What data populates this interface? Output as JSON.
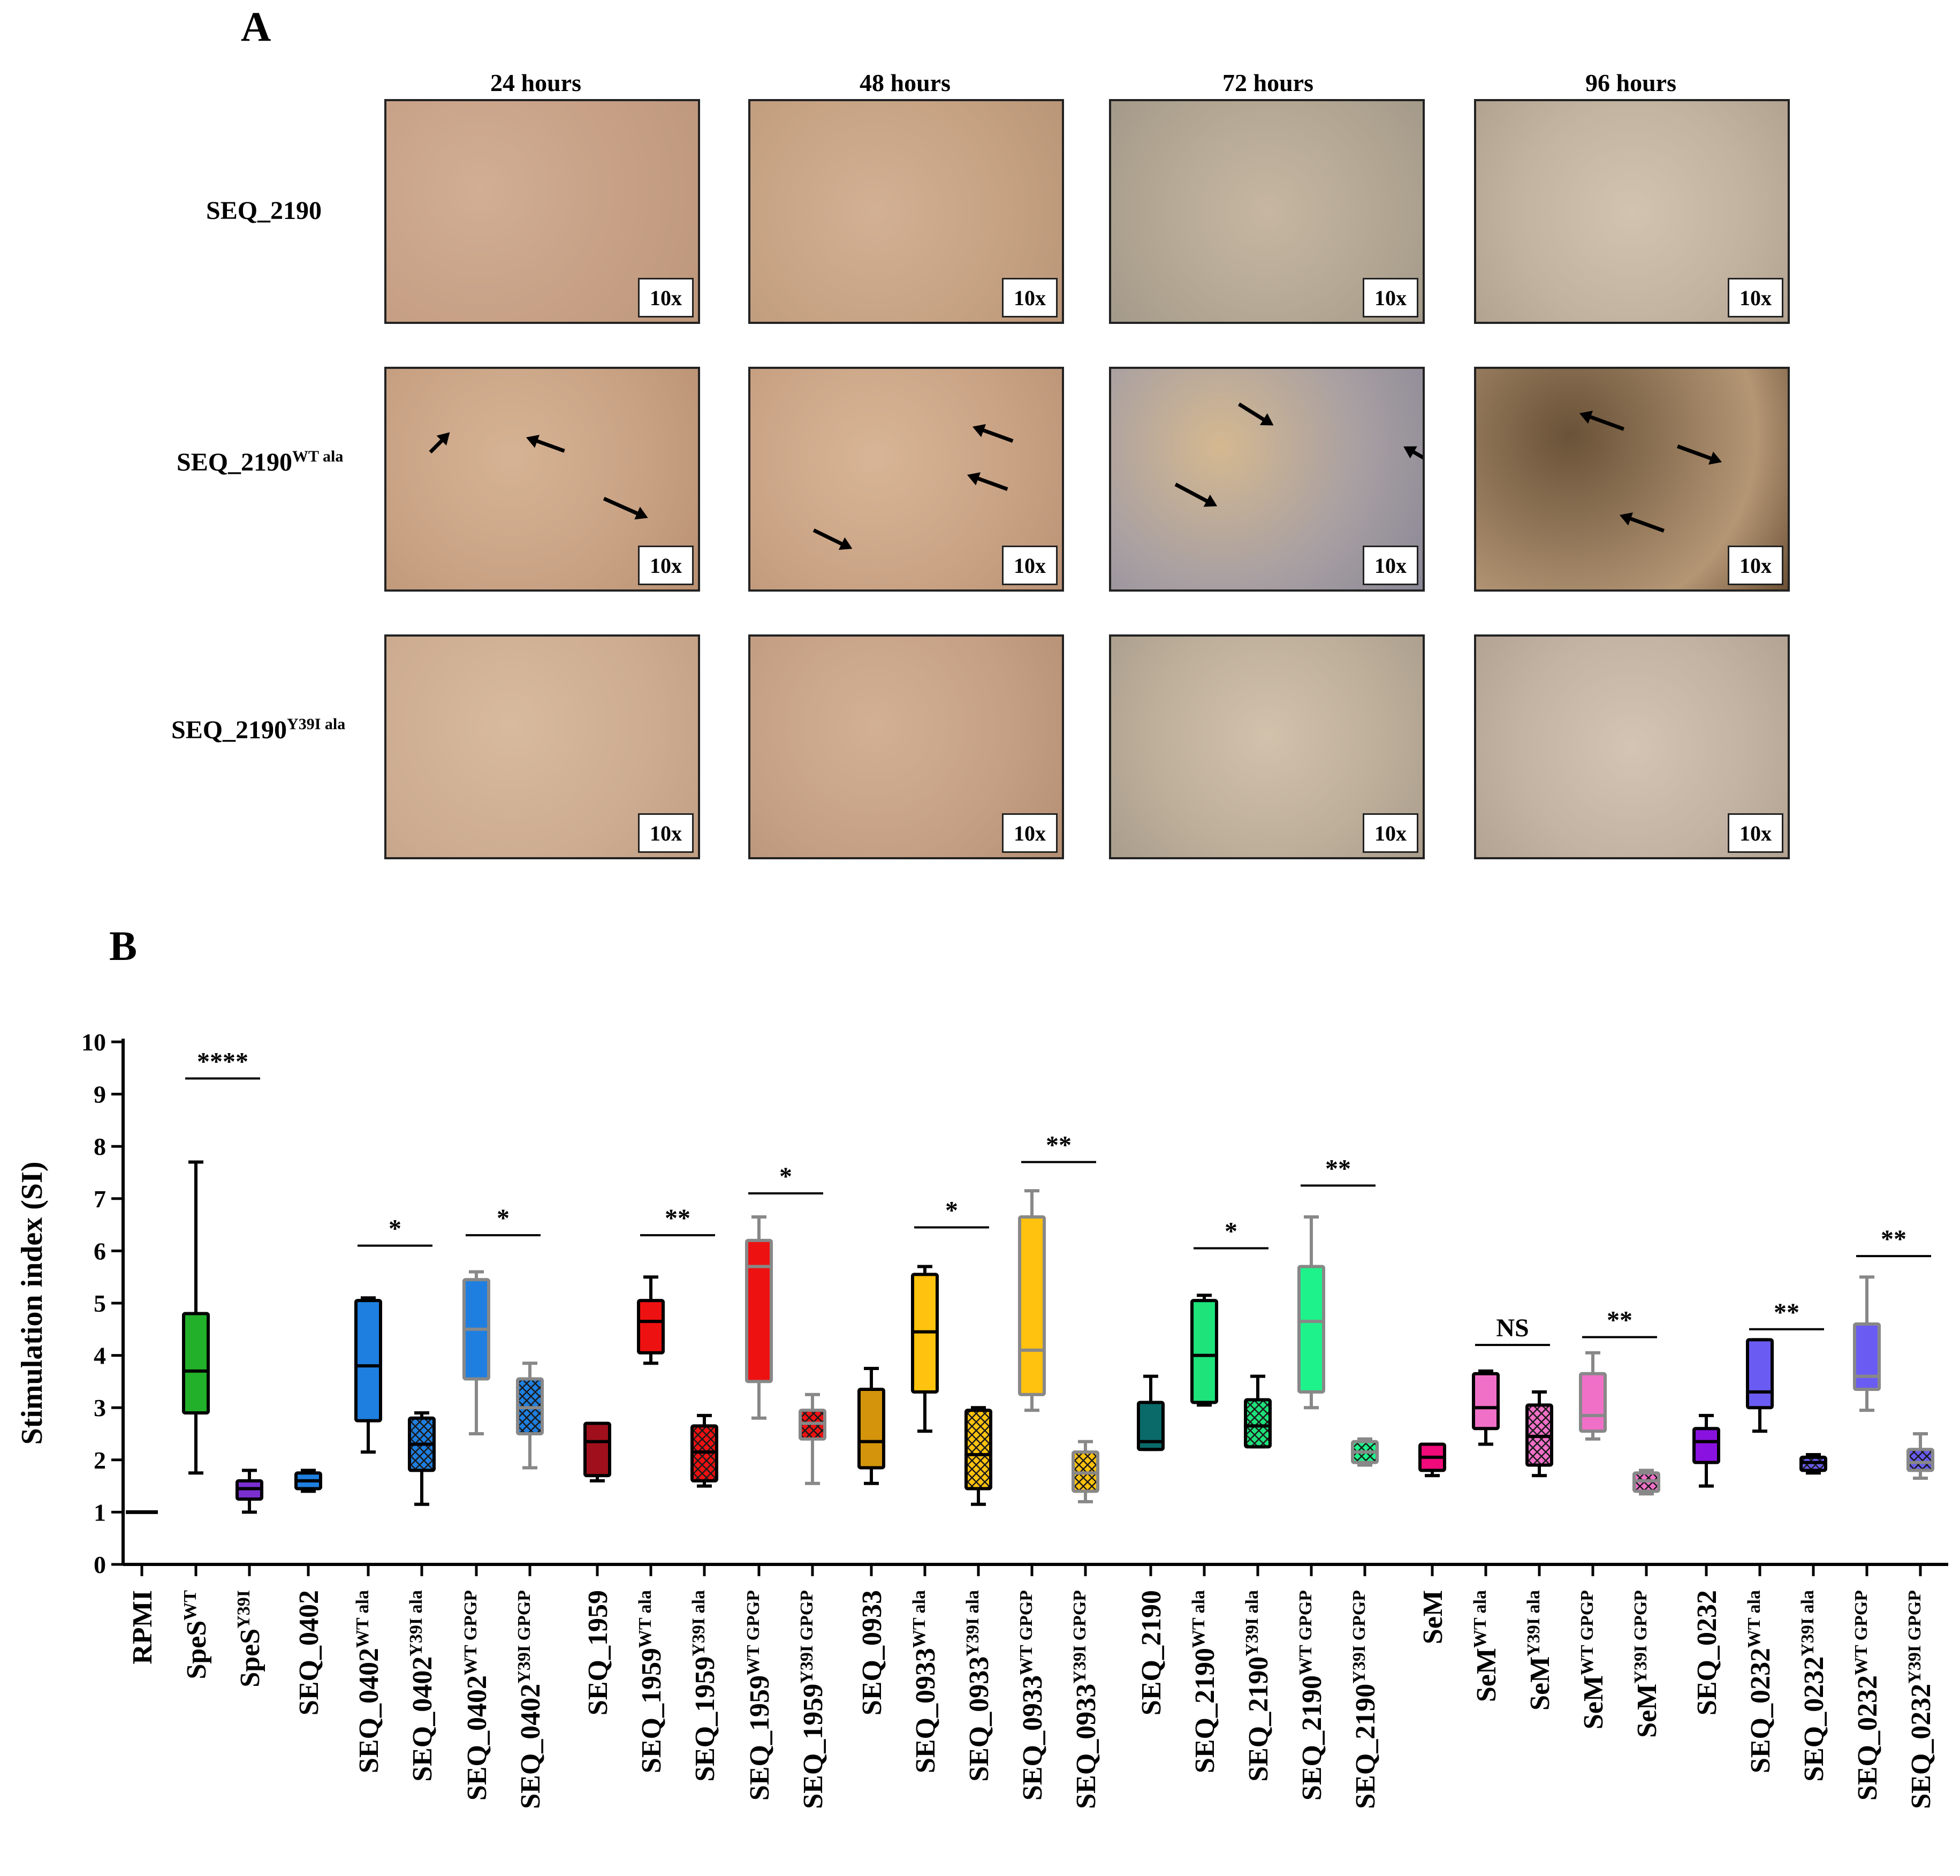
{
  "panel_a": {
    "label": "A",
    "columns": [
      "24 hours",
      "48 hours",
      "72 hours",
      "96 hours"
    ],
    "rows": [
      {
        "name": "SEQ_2190",
        "sup": ""
      },
      {
        "name": "SEQ_2190",
        "sup": "WT ala"
      },
      {
        "name": "SEQ_2190",
        "sup": "Y39I ala"
      }
    ],
    "magnification": "10x",
    "colors": {
      "r1": "#c9a58a",
      "r2": "#c8a07d",
      "r3": "#c7a78d",
      "r4": "#b9ab9c",
      "r5": "#bfae9f"
    }
  },
  "chart_data": {
    "type": "box",
    "panel_label": "B",
    "ylabel": "Stimulation index (SI)",
    "ylim": [
      0,
      10
    ],
    "yticks": [
      0,
      1,
      2,
      3,
      4,
      5,
      6,
      7,
      8,
      9,
      10
    ],
    "reference_line": {
      "label": "RPMI",
      "value": 1
    },
    "groups": [
      {
        "label": "RPMI",
        "sup": "",
        "color": "",
        "pattern": "",
        "stroke": ""
      },
      {
        "label": "SpeS",
        "sup": "WT",
        "color": "#22b02a",
        "pattern": "solid",
        "stroke": "#000",
        "min": 1.75,
        "q1": 2.9,
        "median": 3.7,
        "q3": 4.8,
        "max": 7.7
      },
      {
        "label": "SpeS",
        "sup": "Y39I",
        "color": "#7a2fd0",
        "pattern": "solid",
        "stroke": "#000",
        "min": 1.0,
        "q1": 1.25,
        "median": 1.45,
        "q3": 1.6,
        "max": 1.8
      },
      {
        "label": "SEQ_0402",
        "sup": "",
        "color": "#1e7fe0",
        "pattern": "solid",
        "stroke": "#000",
        "min": 1.4,
        "q1": 1.45,
        "median": 1.6,
        "q3": 1.75,
        "max": 1.8
      },
      {
        "label": "SEQ_0402",
        "sup": "WT ala",
        "color": "#1e7fe0",
        "pattern": "solid",
        "stroke": "#000",
        "min": 2.15,
        "q1": 2.75,
        "median": 3.8,
        "q3": 5.05,
        "max": 5.1
      },
      {
        "label": "SEQ_0402",
        "sup": "Y39I ala",
        "color": "#1e7fe0",
        "pattern": "hatch",
        "stroke": "#000",
        "min": 1.15,
        "q1": 1.8,
        "median": 2.3,
        "q3": 2.8,
        "max": 2.9
      },
      {
        "label": "SEQ_0402",
        "sup": "WT GPGP",
        "color": "#1e7fe0",
        "pattern": "solid",
        "stroke": "#888",
        "min": 2.5,
        "q1": 3.55,
        "median": 4.5,
        "q3": 5.45,
        "max": 5.6
      },
      {
        "label": "SEQ_0402",
        "sup": "Y39I GPGP",
        "color": "#1e7fe0",
        "pattern": "hatch",
        "stroke": "#888",
        "min": 1.85,
        "q1": 2.5,
        "median": 3.0,
        "q3": 3.55,
        "max": 3.85
      },
      {
        "label": "SEQ_1959",
        "sup": "",
        "color": "#a0101c",
        "pattern": "solid",
        "stroke": "#000",
        "min": 1.6,
        "q1": 1.7,
        "median": 2.35,
        "q3": 2.7,
        "max": 2.7
      },
      {
        "label": "SEQ_1959",
        "sup": "WT ala",
        "color": "#ee1111",
        "pattern": "solid",
        "stroke": "#000",
        "min": 3.85,
        "q1": 4.05,
        "median": 4.65,
        "q3": 5.05,
        "max": 5.5
      },
      {
        "label": "SEQ_1959",
        "sup": "Y39I ala",
        "color": "#ee1111",
        "pattern": "hatch",
        "stroke": "#000",
        "min": 1.5,
        "q1": 1.6,
        "median": 2.15,
        "q3": 2.65,
        "max": 2.85
      },
      {
        "label": "SEQ_1959",
        "sup": "WT GPGP",
        "color": "#ee1111",
        "pattern": "solid",
        "stroke": "#888",
        "min": 2.8,
        "q1": 3.5,
        "median": 5.7,
        "q3": 6.2,
        "max": 6.65
      },
      {
        "label": "SEQ_1959",
        "sup": "Y39I GPGP",
        "color": "#ee1111",
        "pattern": "hatch",
        "stroke": "#888",
        "min": 1.55,
        "q1": 2.4,
        "median": 2.7,
        "q3": 2.95,
        "max": 3.25
      },
      {
        "label": "SEQ_0933",
        "sup": "",
        "color": "#d4940c",
        "pattern": "solid",
        "stroke": "#000",
        "min": 1.55,
        "q1": 1.85,
        "median": 2.35,
        "q3": 3.35,
        "max": 3.75
      },
      {
        "label": "SEQ_0933",
        "sup": "WT ala",
        "color": "#ffc20e",
        "pattern": "solid",
        "stroke": "#000",
        "min": 2.55,
        "q1": 3.3,
        "median": 4.45,
        "q3": 5.55,
        "max": 5.7
      },
      {
        "label": "SEQ_0933",
        "sup": "Y39I ala",
        "color": "#ffc20e",
        "pattern": "hatch",
        "stroke": "#000",
        "min": 1.15,
        "q1": 1.45,
        "median": 2.1,
        "q3": 2.95,
        "max": 3.0
      },
      {
        "label": "SEQ_0933",
        "sup": "WT GPGP",
        "color": "#ffc20e",
        "pattern": "solid",
        "stroke": "#888",
        "min": 2.95,
        "q1": 3.25,
        "median": 4.1,
        "q3": 6.65,
        "max": 7.15
      },
      {
        "label": "SEQ_0933",
        "sup": "Y39I GPGP",
        "color": "#ffc20e",
        "pattern": "hatch",
        "stroke": "#888",
        "min": 1.2,
        "q1": 1.4,
        "median": 1.75,
        "q3": 2.15,
        "max": 2.35
      },
      {
        "label": "SEQ_2190",
        "sup": "",
        "color": "#0a6a6a",
        "pattern": "solid",
        "stroke": "#000",
        "min": 2.2,
        "q1": 2.2,
        "median": 2.35,
        "q3": 3.1,
        "max": 3.6
      },
      {
        "label": "SEQ_2190",
        "sup": "WT ala",
        "color": "#1ee27a",
        "pattern": "solid",
        "stroke": "#000",
        "min": 3.05,
        "q1": 3.1,
        "median": 4.0,
        "q3": 5.05,
        "max": 5.15
      },
      {
        "label": "SEQ_2190",
        "sup": "Y39I ala",
        "color": "#1ee27a",
        "pattern": "hatch",
        "stroke": "#000",
        "min": 2.25,
        "q1": 2.25,
        "median": 2.65,
        "q3": 3.15,
        "max": 3.6
      },
      {
        "label": "SEQ_2190",
        "sup": "WT GPGP",
        "color": "#1ef28a",
        "pattern": "solid",
        "stroke": "#888",
        "min": 3.0,
        "q1": 3.3,
        "median": 4.65,
        "q3": 5.7,
        "max": 6.65
      },
      {
        "label": "SEQ_2190",
        "sup": "Y39I GPGP",
        "color": "#1ef28a",
        "pattern": "hatch",
        "stroke": "#888",
        "min": 1.9,
        "q1": 1.95,
        "median": 2.15,
        "q3": 2.35,
        "max": 2.4
      },
      {
        "label": "SeM",
        "sup": "",
        "color": "#f00a7a",
        "pattern": "solid",
        "stroke": "#000",
        "min": 1.7,
        "q1": 1.8,
        "median": 2.05,
        "q3": 2.3,
        "max": 2.3
      },
      {
        "label": "SeM",
        "sup": "WT ala",
        "color": "#f070c8",
        "pattern": "solid",
        "stroke": "#000",
        "min": 2.3,
        "q1": 2.6,
        "median": 3.0,
        "q3": 3.65,
        "max": 3.7
      },
      {
        "label": "SeM",
        "sup": "Y39I ala",
        "color": "#f070c8",
        "pattern": "hatch",
        "stroke": "#000",
        "min": 1.7,
        "q1": 1.9,
        "median": 2.45,
        "q3": 3.05,
        "max": 3.3
      },
      {
        "label": "SeM",
        "sup": "WT GPGP",
        "color": "#f070c8",
        "pattern": "solid",
        "stroke": "#888",
        "min": 2.4,
        "q1": 2.55,
        "median": 2.85,
        "q3": 3.65,
        "max": 4.05
      },
      {
        "label": "SeM",
        "sup": "Y39I GPGP",
        "color": "#f070c8",
        "pattern": "hatch",
        "stroke": "#888",
        "min": 1.35,
        "q1": 1.4,
        "median": 1.6,
        "q3": 1.75,
        "max": 1.8
      },
      {
        "label": "SEQ_0232",
        "sup": "",
        "color": "#8a12e0",
        "pattern": "solid",
        "stroke": "#000",
        "min": 1.5,
        "q1": 1.95,
        "median": 2.35,
        "q3": 2.6,
        "max": 2.85
      },
      {
        "label": "SEQ_0232",
        "sup": "WT ala",
        "color": "#6a5cf2",
        "pattern": "solid",
        "stroke": "#000",
        "min": 2.55,
        "q1": 3.0,
        "median": 3.3,
        "q3": 4.3,
        "max": 4.3
      },
      {
        "label": "SEQ_0232",
        "sup": "Y39I ala",
        "color": "#6a5cf2",
        "pattern": "hatch",
        "stroke": "#000",
        "min": 1.75,
        "q1": 1.8,
        "median": 1.95,
        "q3": 2.05,
        "max": 2.1
      },
      {
        "label": "SEQ_0232",
        "sup": "WT GPGP",
        "color": "#6a5cf2",
        "pattern": "solid",
        "stroke": "#888",
        "min": 2.95,
        "q1": 3.35,
        "median": 3.6,
        "q3": 4.6,
        "max": 5.5
      },
      {
        "label": "SEQ_0232",
        "sup": "Y39I GPGP",
        "color": "#6a5cf2",
        "pattern": "hatch",
        "stroke": "#888",
        "min": 1.65,
        "q1": 1.8,
        "median": 1.95,
        "q3": 2.2,
        "max": 2.5
      }
    ],
    "significance": [
      {
        "from": 1,
        "to": 2,
        "y": 9.3,
        "label": "****"
      },
      {
        "from": 4,
        "to": 5,
        "y": 6.1,
        "label": "*"
      },
      {
        "from": 6,
        "to": 7,
        "y": 6.3,
        "label": "*"
      },
      {
        "from": 9,
        "to": 10,
        "y": 6.3,
        "label": "**"
      },
      {
        "from": 11,
        "to": 12,
        "y": 7.1,
        "label": "*"
      },
      {
        "from": 14,
        "to": 15,
        "y": 6.45,
        "label": "*"
      },
      {
        "from": 16,
        "to": 17,
        "y": 7.7,
        "label": "**"
      },
      {
        "from": 19,
        "to": 20,
        "y": 6.05,
        "label": "*"
      },
      {
        "from": 21,
        "to": 22,
        "y": 7.25,
        "label": "**"
      },
      {
        "from": 24,
        "to": 25,
        "y": 4.2,
        "label": "NS"
      },
      {
        "from": 26,
        "to": 27,
        "y": 4.35,
        "label": "**"
      },
      {
        "from": 29,
        "to": 30,
        "y": 4.5,
        "label": "**"
      },
      {
        "from": 31,
        "to": 32,
        "y": 5.9,
        "label": "**"
      }
    ]
  }
}
